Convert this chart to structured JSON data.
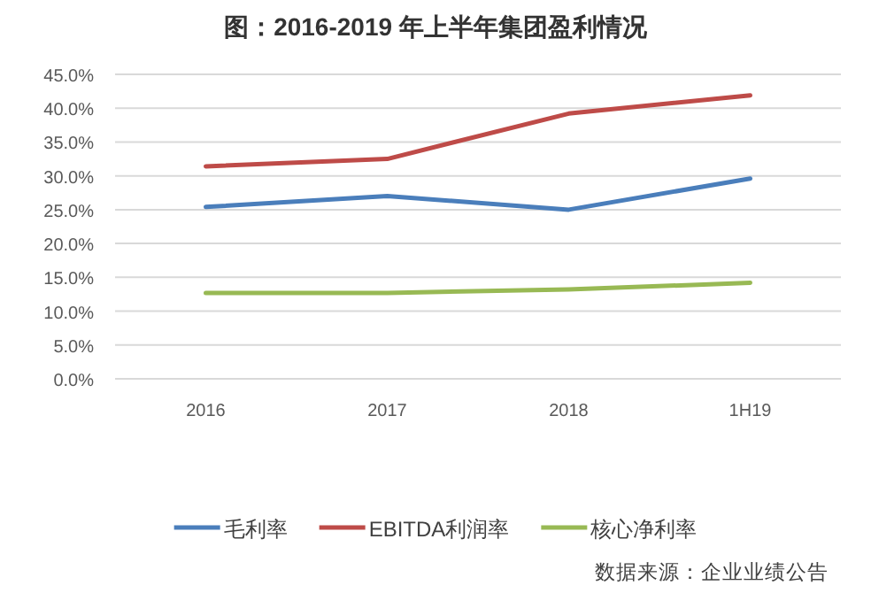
{
  "chart_data": {
    "type": "line",
    "title": "图：2016-2019 年上半年集团盈利情况",
    "categories": [
      "2016",
      "2017",
      "2018",
      "1H19"
    ],
    "series": [
      {
        "name": "毛利率",
        "color": "#4a7ebb",
        "values": [
          25.4,
          27.0,
          25.0,
          29.6
        ]
      },
      {
        "name": "EBITDA利润率",
        "color": "#be4b48",
        "values": [
          31.4,
          32.5,
          39.2,
          41.9
        ]
      },
      {
        "name": "核心净利率",
        "color": "#98b954",
        "values": [
          12.7,
          12.7,
          13.2,
          14.2
        ]
      }
    ],
    "ylim": [
      0,
      45
    ],
    "yticks": [
      {
        "value": 0,
        "label": "0.0%"
      },
      {
        "value": 5,
        "label": "5.0%"
      },
      {
        "value": 10,
        "label": "10.0%"
      },
      {
        "value": 15,
        "label": "15.0%"
      },
      {
        "value": 20,
        "label": "20.0%"
      },
      {
        "value": 25,
        "label": "25.0%"
      },
      {
        "value": 30,
        "label": "30.0%"
      },
      {
        "value": 35,
        "label": "35.0%"
      },
      {
        "value": 40,
        "label": "40.0%"
      },
      {
        "value": 45,
        "label": "45.0%"
      }
    ],
    "grid": "y",
    "legend": "bottom",
    "marker": "none",
    "line_style": "solid",
    "annotations": [
      "数据来源：企业业绩公告"
    ]
  }
}
